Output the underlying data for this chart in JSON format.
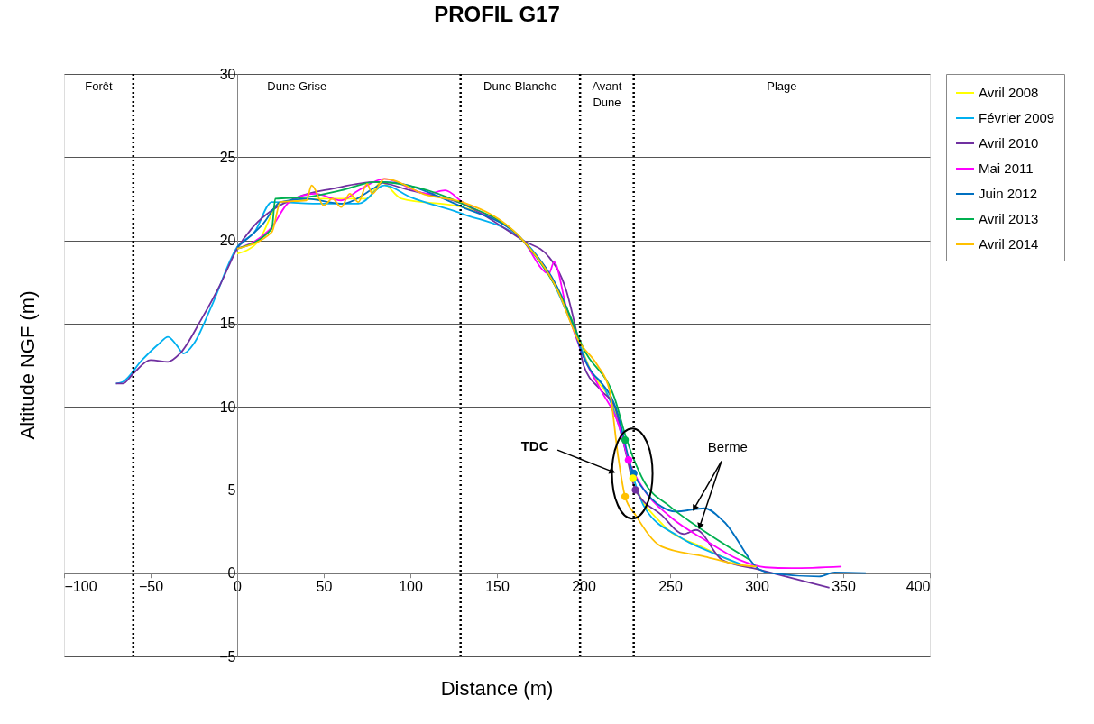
{
  "chart_data": {
    "type": "line",
    "title": "PROFIL G17",
    "xlabel": "Distance (m)",
    "ylabel": "Altitude NGF (m)",
    "xlim": [
      -100,
      400
    ],
    "xticks": [
      -100,
      -50,
      0,
      50,
      100,
      150,
      200,
      250,
      300,
      350,
      400
    ],
    "ylim": [
      -5,
      30
    ],
    "yticks": [
      -5,
      0,
      5,
      10,
      15,
      20,
      25,
      30
    ],
    "grid": "y",
    "legend": "right",
    "line_style": "solid",
    "marker": "none",
    "series": [
      {
        "name": "Avril 2008",
        "color": "#ffff00",
        "x": [
          0,
          12,
          25,
          50,
          75,
          83,
          95,
          130,
          165,
          185,
          197,
          205,
          215,
          222,
          228.5,
          245,
          270,
          290
        ],
        "values": [
          19.2,
          19.9,
          22.3,
          22.5,
          22.5,
          23.5,
          22.5,
          22.0,
          20.0,
          17.0,
          14.0,
          12.0,
          10.5,
          8.5,
          5.7,
          3.0,
          1.5,
          0.5
        ]
      },
      {
        "name": "Février 2009",
        "color": "#00b0f0",
        "x": [
          -70,
          -66,
          -55,
          -45,
          -40,
          -35,
          -31,
          -25,
          -15,
          0,
          10,
          20,
          50,
          70,
          85,
          100,
          130,
          165,
          180,
          195,
          205,
          210,
          220,
          228,
          235,
          255,
          275,
          292
        ],
        "values": [
          11.4,
          11.5,
          12.8,
          13.8,
          14.2,
          13.7,
          13.2,
          13.8,
          16.0,
          19.6,
          20.5,
          22.3,
          22.2,
          22.2,
          23.3,
          22.6,
          21.6,
          20.0,
          18.0,
          14.5,
          12.0,
          11.5,
          9.0,
          6.0,
          4.0,
          2.2,
          1.2,
          0.5
        ]
      },
      {
        "name": "Avril 2010",
        "color": "#7030a0",
        "x": [
          -70,
          -66,
          -60,
          -50,
          -40,
          -33,
          -21,
          -10,
          0,
          10,
          20,
          35,
          55,
          80,
          100,
          130,
          165,
          180,
          190,
          197,
          200,
          210,
          218,
          225,
          230,
          245,
          258,
          265,
          280,
          302,
          342
        ],
        "values": [
          11.4,
          11.4,
          12.0,
          12.8,
          12.7,
          13.2,
          15.2,
          17.3,
          19.5,
          20.9,
          21.8,
          22.6,
          23.1,
          23.5,
          23.0,
          22.2,
          20.0,
          19.0,
          17.0,
          14.0,
          12.5,
          11.0,
          10.0,
          7.0,
          5.0,
          3.5,
          2.35,
          2.6,
          0.8,
          0.2,
          -0.87
        ]
      },
      {
        "name": "Mai 2011",
        "color": "#ff00ff",
        "x": [
          0,
          20,
          30,
          45,
          60,
          70,
          85,
          110,
          120,
          130,
          165,
          180,
          183,
          190,
          200,
          210,
          220,
          226,
          235,
          250,
          270,
          290,
          305,
          320,
          349
        ],
        "values": [
          19.5,
          20.8,
          22.3,
          22.8,
          22.4,
          23.0,
          23.7,
          22.8,
          23.0,
          22.3,
          20.0,
          18.0,
          18.7,
          16.0,
          13.0,
          11.0,
          9.0,
          6.8,
          5.0,
          3.4,
          2.0,
          0.8,
          0.35,
          0.3,
          0.4
        ]
      },
      {
        "name": "Juin 2012",
        "color": "#0070c0",
        "x": [
          0,
          15,
          25,
          40,
          60,
          80,
          85,
          130,
          165,
          190,
          200,
          220,
          228,
          235,
          245,
          253,
          270,
          281,
          302,
          308,
          336,
          345,
          363
        ],
        "values": [
          19.6,
          21.0,
          22.3,
          22.5,
          22.2,
          23.2,
          23.5,
          22.0,
          20.0,
          16.0,
          13.0,
          9.5,
          6.2,
          5.0,
          4.0,
          3.7,
          3.9,
          3.1,
          0.2,
          0.0,
          -0.2,
          0.05,
          0.0
        ]
      },
      {
        "name": "Avril 2013",
        "color": "#00b050",
        "x": [
          0,
          20,
          22,
          40,
          60,
          80,
          130,
          165,
          190,
          200,
          218,
          225,
          235,
          250,
          270,
          296
        ],
        "values": [
          19.5,
          20.7,
          22.5,
          22.6,
          23.0,
          23.5,
          22.2,
          20.0,
          16.0,
          13.5,
          10.5,
          8.0,
          5.5,
          4.0,
          2.5,
          0.8
        ]
      },
      {
        "name": "Avril 2014",
        "color": "#ffc000",
        "x": [
          0,
          20,
          25,
          40,
          43,
          50,
          55,
          60,
          65,
          70,
          75,
          78,
          85,
          110,
          130,
          165,
          185,
          197,
          208,
          215,
          220,
          224,
          230,
          245,
          270,
          290,
          300
        ],
        "values": [
          19.5,
          20.5,
          22.3,
          22.4,
          23.3,
          22.1,
          22.5,
          22.0,
          22.8,
          22.3,
          23.4,
          22.8,
          23.7,
          22.7,
          22.3,
          20.0,
          17.0,
          14.0,
          12.5,
          11.0,
          7.0,
          4.6,
          3.5,
          1.6,
          1.0,
          0.5,
          0.4
        ]
      },
      {
        "type": "scatter",
        "marker": "circle",
        "color": "#00b050",
        "x": [
          224
        ],
        "values": [
          8.0
        ]
      },
      {
        "type": "scatter",
        "marker": "circle",
        "color": "#ff00ff",
        "x": [
          226
        ],
        "values": [
          6.8
        ]
      },
      {
        "type": "scatter",
        "marker": "circle",
        "color": "#0070c0",
        "x": [
          229
        ],
        "values": [
          6.0
        ]
      },
      {
        "type": "scatter",
        "marker": "circle",
        "color": "#ffff00",
        "x": [
          228.5
        ],
        "values": [
          5.7
        ]
      },
      {
        "type": "scatter",
        "marker": "circle",
        "color": "#7030a0",
        "x": [
          230
        ],
        "values": [
          5.0
        ]
      },
      {
        "type": "scatter",
        "marker": "circle",
        "color": "#ffc000",
        "x": [
          224
        ],
        "values": [
          4.6
        ]
      }
    ],
    "ref_lines": [
      {
        "axis": "x",
        "value": -60,
        "line_style": "dotted"
      },
      {
        "axis": "x",
        "value": 129,
        "line_style": "dotted"
      },
      {
        "axis": "x",
        "value": 198,
        "line_style": "dotted"
      },
      {
        "axis": "x",
        "value": 229,
        "line_style": "dotted"
      }
    ],
    "annotations": [
      "Forêt",
      "Dune Grise",
      "Dune Blanche",
      "Avant Dune",
      "Plage",
      {
        "text": "TDC",
        "x": 216.7,
        "y": 6.1
      },
      {
        "text": "Berme",
        "x": 264,
        "y": 3.9
      }
    ]
  }
}
